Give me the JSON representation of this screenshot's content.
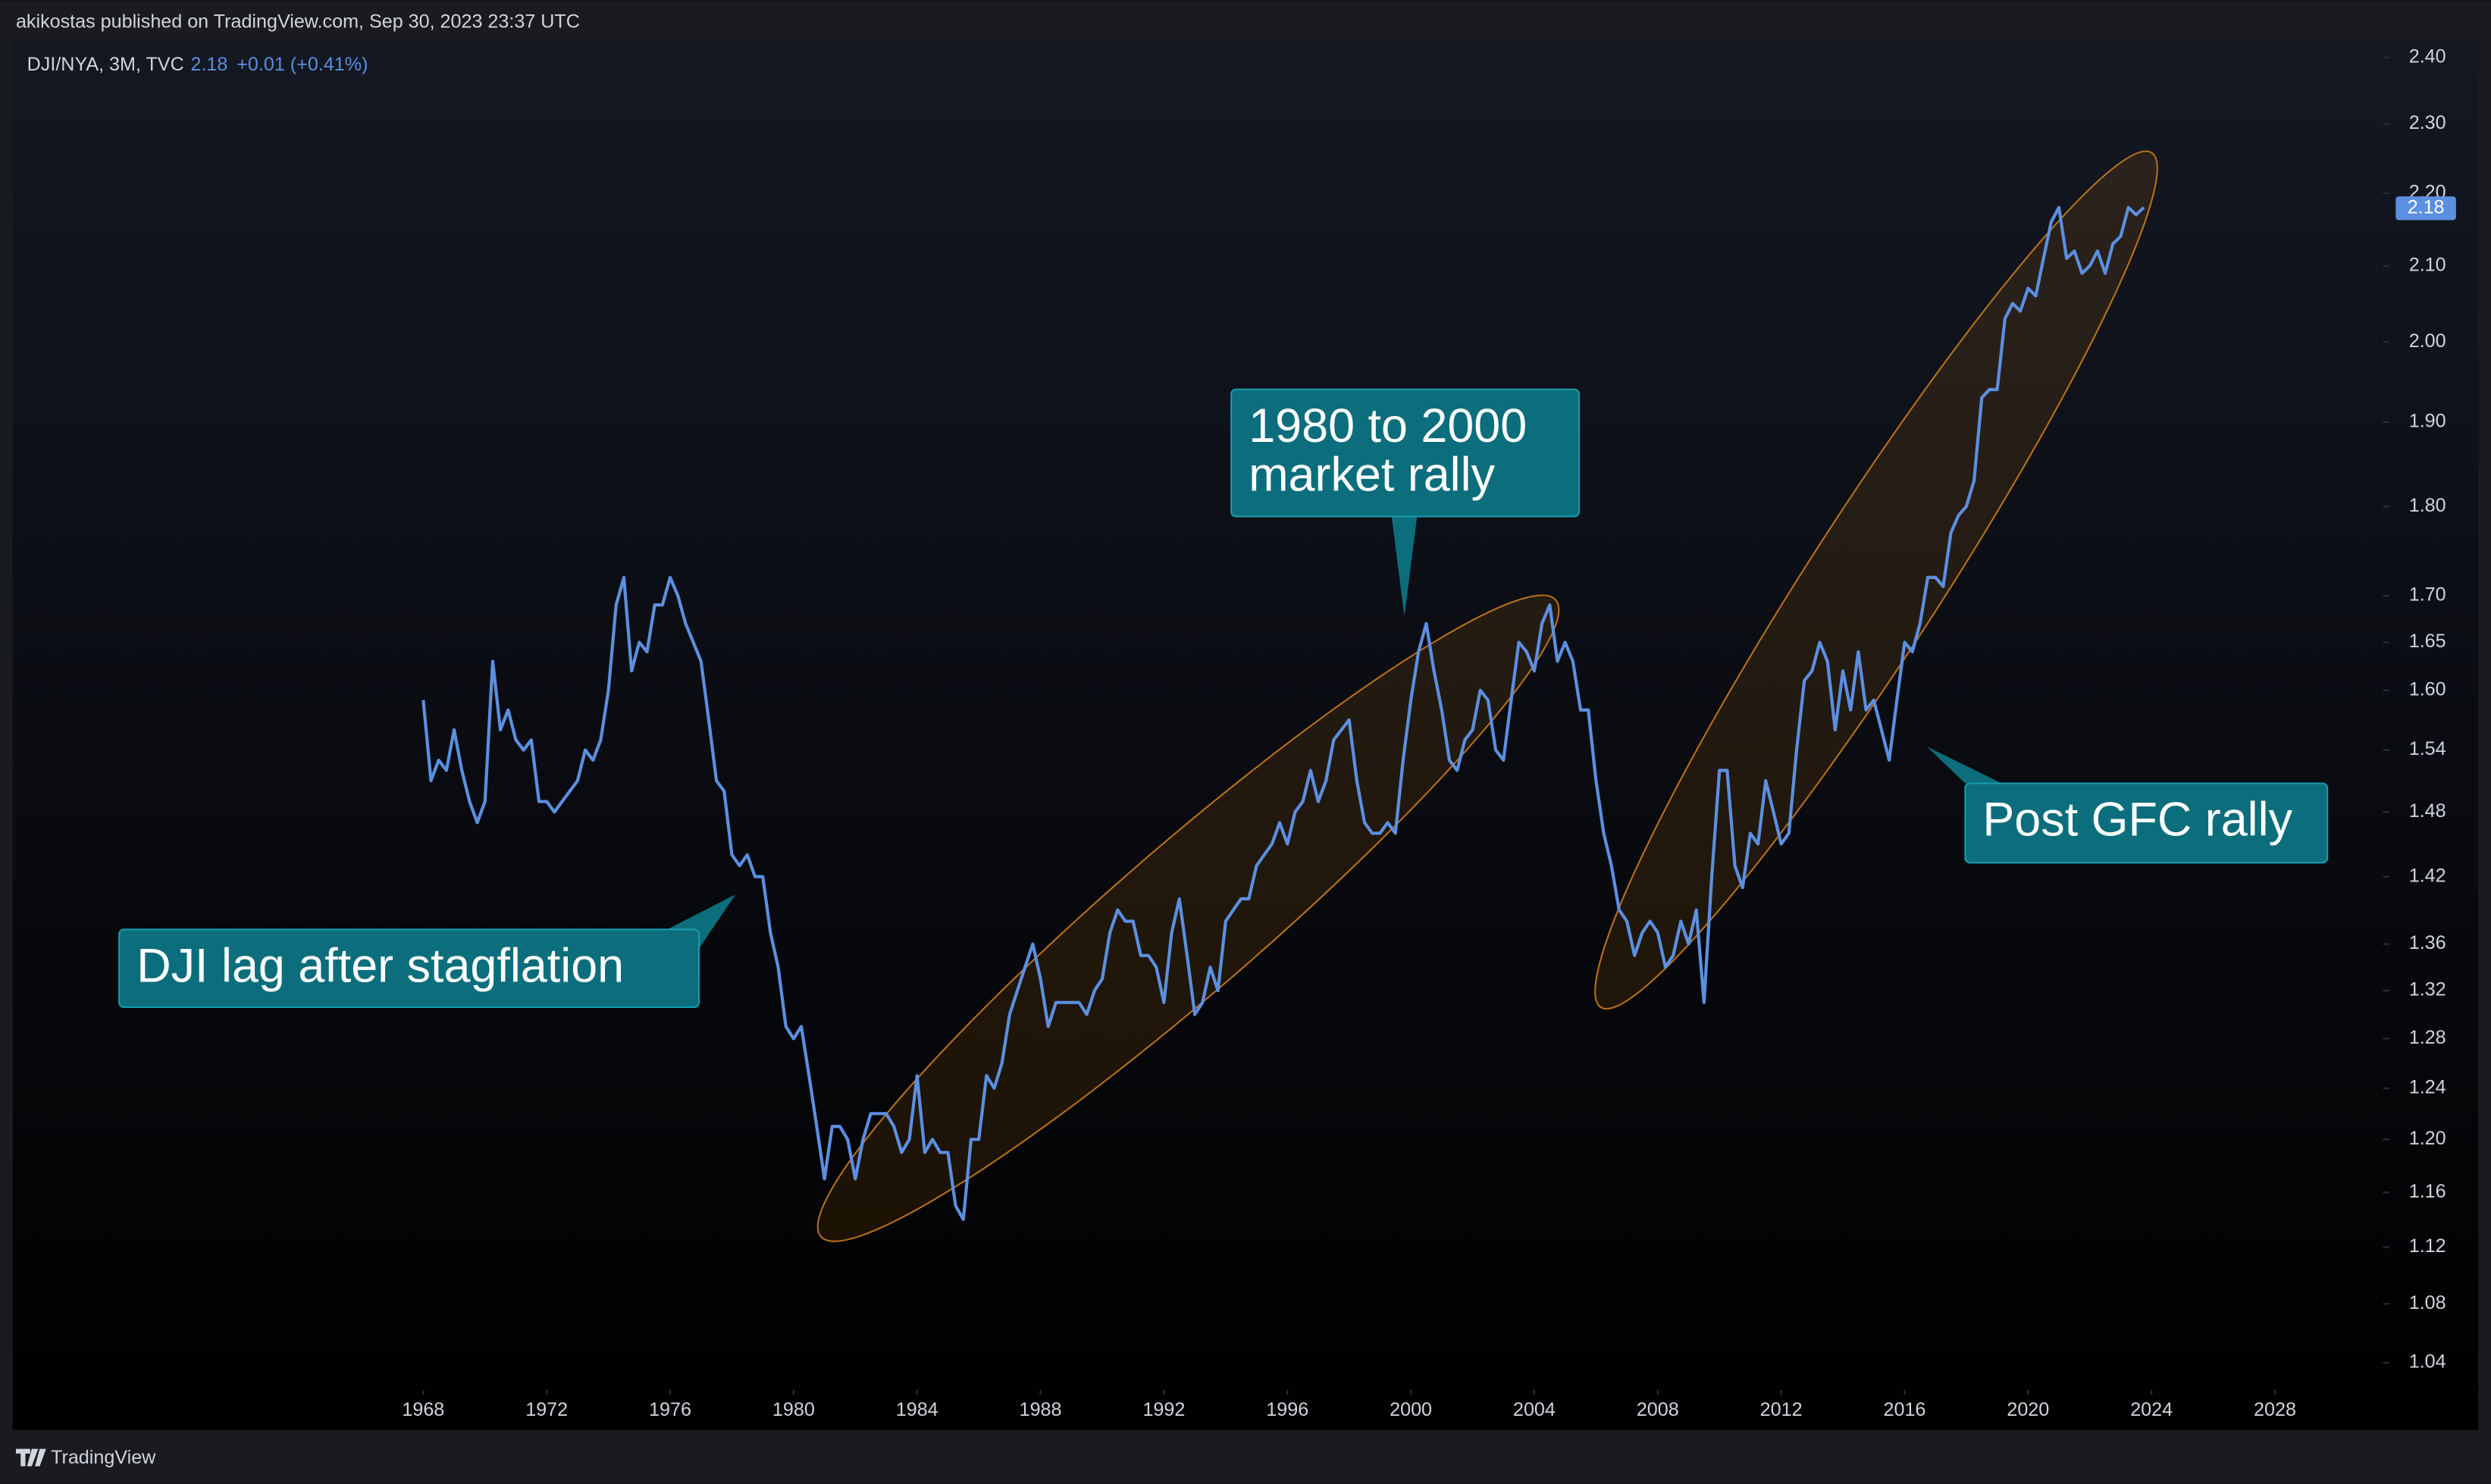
{
  "header": {
    "text": "akikostas published on TradingView.com, Sep 30, 2023 23:37 UTC"
  },
  "footer": {
    "brand": "TradingView"
  },
  "chart_data": {
    "type": "line",
    "legend": {
      "symbol": "DJI/NYA, 3M, TVC",
      "price": 2.18,
      "change": "+0.01 (+0.41%)"
    },
    "price_tag": 2.18,
    "log_scale": true,
    "grid": false,
    "xlim": [
      1954.8,
      2031.5
    ],
    "ylim": [
      1.022,
      2.427
    ],
    "xticks": [
      1968,
      1972,
      1976,
      1980,
      1984,
      1988,
      1992,
      1996,
      2000,
      2004,
      2008,
      2012,
      2016,
      2020,
      2024,
      2028
    ],
    "yticks": [
      1.04,
      1.08,
      1.12,
      1.16,
      {
        "value": 1.2,
        "label": "1.20"
      },
      1.24,
      1.28,
      1.32,
      1.36,
      1.42,
      1.48,
      1.54,
      {
        "value": 1.6,
        "label": "1.60"
      },
      1.65,
      {
        "value": 1.7,
        "label": "1.70"
      },
      {
        "value": 1.8,
        "label": "1.80"
      },
      {
        "value": 1.9,
        "label": "1.90"
      },
      {
        "value": 2.0,
        "label": "2.00"
      },
      {
        "value": 2.1,
        "label": "2.10"
      },
      {
        "value": 2.2,
        "label": "2.20"
      },
      {
        "value": 2.3,
        "label": "2.30"
      },
      {
        "value": 2.4,
        "label": "2.40"
      }
    ],
    "annotations": [
      {
        "lines": [
          "DJI lag after stagflation"
        ]
      },
      {
        "lines": [
          "1980 to 2000",
          "market rally"
        ]
      },
      {
        "lines": [
          "Post GFC rally"
        ]
      }
    ],
    "x": [
      1968,
      1968.25,
      1968.5,
      1968.75,
      1969,
      1969.25,
      1969.5,
      1969.75,
      1970,
      1970.25,
      1970.5,
      1970.75,
      1971,
      1971.25,
      1971.5,
      1971.75,
      1972,
      1972.25,
      1972.5,
      1972.75,
      1973,
      1973.25,
      1973.5,
      1973.75,
      1974,
      1974.25,
      1974.5,
      1974.75,
      1975,
      1975.25,
      1975.5,
      1975.75,
      1976,
      1976.25,
      1976.5,
      1976.75,
      1977,
      1977.25,
      1977.5,
      1977.75,
      1978,
      1978.25,
      1978.5,
      1978.75,
      1979,
      1979.25,
      1979.5,
      1979.75,
      1980,
      1980.25,
      1980.5,
      1980.75,
      1981,
      1981.25,
      1981.5,
      1981.75,
      1982,
      1982.25,
      1982.5,
      1982.75,
      1983,
      1983.25,
      1983.5,
      1983.75,
      1984,
      1984.25,
      1984.5,
      1984.75,
      1985,
      1985.25,
      1985.5,
      1985.75,
      1986,
      1986.25,
      1986.5,
      1986.75,
      1987,
      1987.25,
      1987.5,
      1987.75,
      1988,
      1988.25,
      1988.5,
      1988.75,
      1989,
      1989.25,
      1989.5,
      1989.75,
      1990,
      1990.25,
      1990.5,
      1990.75,
      1991,
      1991.25,
      1991.5,
      1991.75,
      1992,
      1992.25,
      1992.5,
      1992.75,
      1993,
      1993.25,
      1993.5,
      1993.75,
      1994,
      1994.25,
      1994.5,
      1994.75,
      1995,
      1995.25,
      1995.5,
      1995.75,
      1996,
      1996.25,
      1996.5,
      1996.75,
      1997,
      1997.25,
      1997.5,
      1997.75,
      1998,
      1998.25,
      1998.5,
      1998.75,
      1999,
      1999.25,
      1999.5,
      1999.75,
      2000,
      2000.25,
      2000.5,
      2000.75,
      2001,
      2001.25,
      2001.5,
      2001.75,
      2002,
      2002.25,
      2002.5,
      2002.75,
      2003,
      2003.25,
      2003.5,
      2003.75,
      2004,
      2004.25,
      2004.5,
      2004.75,
      2005,
      2005.25,
      2005.5,
      2005.75,
      2006,
      2006.25,
      2006.5,
      2006.75,
      2007,
      2007.25,
      2007.5,
      2007.75,
      2008,
      2008.25,
      2008.5,
      2008.75,
      2009,
      2009.25,
      2009.5,
      2009.75,
      2010,
      2010.25,
      2010.5,
      2010.75,
      2011,
      2011.25,
      2011.5,
      2011.75,
      2012,
      2012.25,
      2012.5,
      2012.75,
      2013,
      2013.25,
      2013.5,
      2013.75,
      2014,
      2014.25,
      2014.5,
      2014.75,
      2015,
      2015.25,
      2015.5,
      2015.75,
      2016,
      2016.25,
      2016.5,
      2016.75,
      2017,
      2017.25,
      2017.5,
      2017.75,
      2018,
      2018.25,
      2018.5,
      2018.75,
      2019,
      2019.25,
      2019.5,
      2019.75,
      2020,
      2020.25,
      2020.5,
      2020.75,
      2021,
      2021.25,
      2021.5,
      2021.75,
      2022,
      2022.25,
      2022.5,
      2022.75,
      2023,
      2023.25,
      2023.5,
      2023.75
    ],
    "series": [
      {
        "name": "DJI/NYA",
        "color": "#5b8fe0",
        "values": [
          1.59,
          1.51,
          1.53,
          1.52,
          1.56,
          1.52,
          1.49,
          1.47,
          1.49,
          1.63,
          1.56,
          1.58,
          1.55,
          1.54,
          1.55,
          1.49,
          1.49,
          1.48,
          1.49,
          1.5,
          1.51,
          1.54,
          1.53,
          1.55,
          1.6,
          1.69,
          1.72,
          1.62,
          1.65,
          1.64,
          1.69,
          1.69,
          1.72,
          1.7,
          1.67,
          1.65,
          1.63,
          1.57,
          1.51,
          1.5,
          1.44,
          1.43,
          1.44,
          1.42,
          1.42,
          1.37,
          1.34,
          1.29,
          1.28,
          1.29,
          1.25,
          1.21,
          1.17,
          1.21,
          1.21,
          1.2,
          1.17,
          1.2,
          1.22,
          1.22,
          1.22,
          1.21,
          1.19,
          1.2,
          1.25,
          1.19,
          1.2,
          1.19,
          1.19,
          1.15,
          1.14,
          1.2,
          1.2,
          1.25,
          1.24,
          1.26,
          1.3,
          1.32,
          1.34,
          1.36,
          1.33,
          1.29,
          1.31,
          1.31,
          1.31,
          1.31,
          1.3,
          1.32,
          1.33,
          1.37,
          1.39,
          1.38,
          1.38,
          1.35,
          1.35,
          1.34,
          1.31,
          1.37,
          1.4,
          1.35,
          1.3,
          1.31,
          1.34,
          1.32,
          1.38,
          1.39,
          1.4,
          1.4,
          1.43,
          1.44,
          1.45,
          1.47,
          1.45,
          1.48,
          1.49,
          1.52,
          1.49,
          1.51,
          1.55,
          1.56,
          1.57,
          1.51,
          1.47,
          1.46,
          1.46,
          1.47,
          1.46,
          1.53,
          1.59,
          1.64,
          1.67,
          1.62,
          1.58,
          1.53,
          1.52,
          1.55,
          1.56,
          1.6,
          1.59,
          1.54,
          1.53,
          1.59,
          1.65,
          1.64,
          1.62,
          1.67,
          1.69,
          1.63,
          1.65,
          1.63,
          1.58,
          1.58,
          1.51,
          1.46,
          1.43,
          1.39,
          1.38,
          1.35,
          1.37,
          1.38,
          1.37,
          1.34,
          1.35,
          1.38,
          1.36,
          1.39,
          1.31,
          1.42,
          1.52,
          1.52,
          1.43,
          1.41,
          1.46,
          1.45,
          1.51,
          1.48,
          1.45,
          1.46,
          1.54,
          1.61,
          1.62,
          1.65,
          1.63,
          1.56,
          1.62,
          1.58,
          1.64,
          1.58,
          1.59,
          1.56,
          1.53,
          1.59,
          1.65,
          1.64,
          1.67,
          1.72,
          1.72,
          1.71,
          1.77,
          1.79,
          1.8,
          1.83,
          1.93,
          1.94,
          1.94,
          2.03,
          2.05,
          2.04,
          2.07,
          2.06,
          2.11,
          2.16,
          2.18,
          2.11,
          2.12,
          2.09,
          2.1,
          2.12,
          2.09,
          2.13,
          2.14,
          2.18,
          2.17,
          2.18
        ]
      }
    ]
  }
}
